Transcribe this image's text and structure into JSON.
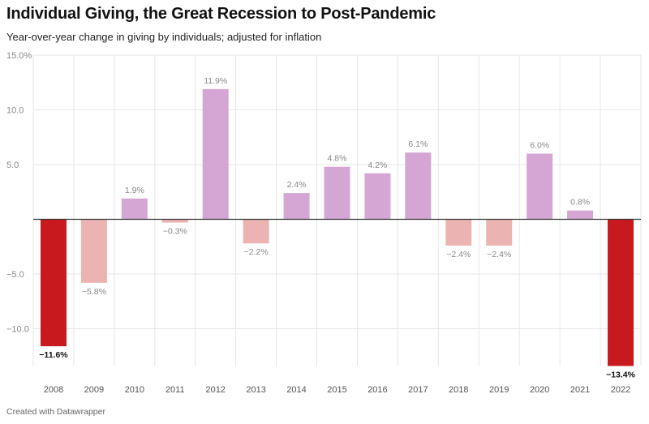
{
  "chart_data": {
    "type": "bar",
    "title": "Individual Giving, the Great Recession to Post-Pandemic",
    "subtitle": "Year-over-year change in giving by individuals; adjusted for inflation",
    "xlabel": "",
    "ylabel": "",
    "ylim": [
      -13.4,
      15.0
    ],
    "yticks": [
      {
        "value": 15,
        "label": "15.0%"
      },
      {
        "value": 10,
        "label": "10.0"
      },
      {
        "value": 5,
        "label": "5.0"
      },
      {
        "value": -5,
        "label": "-5.0"
      },
      {
        "value": -10,
        "label": "-10.0"
      }
    ],
    "categories": [
      "2008",
      "2009",
      "2010",
      "2011",
      "2012",
      "2013",
      "2014",
      "2015",
      "2016",
      "2017",
      "2018",
      "2019",
      "2020",
      "2021",
      "2022"
    ],
    "values": [
      -11.6,
      -5.8,
      1.9,
      -0.3,
      11.9,
      -2.2,
      2.4,
      4.8,
      4.2,
      6.1,
      -2.4,
      -2.4,
      6.0,
      0.8,
      -13.4
    ],
    "labels": [
      "−11.6%",
      "−5.8%",
      "1.9%",
      "−0.3%",
      "11.9%",
      "−2.2%",
      "2.4%",
      "4.8%",
      "4.2%",
      "6.1%",
      "−2.4%",
      "−2.4%",
      "6.0%",
      "0.8%",
      "−13.4%"
    ],
    "highlight": [
      true,
      false,
      false,
      false,
      false,
      false,
      false,
      false,
      false,
      false,
      false,
      false,
      false,
      false,
      true
    ],
    "colors": {
      "positive": "#d5a6d4",
      "negative": "#ebb3b2",
      "highlight": "#c8191e"
    }
  },
  "footer": "Created with Datawrapper"
}
